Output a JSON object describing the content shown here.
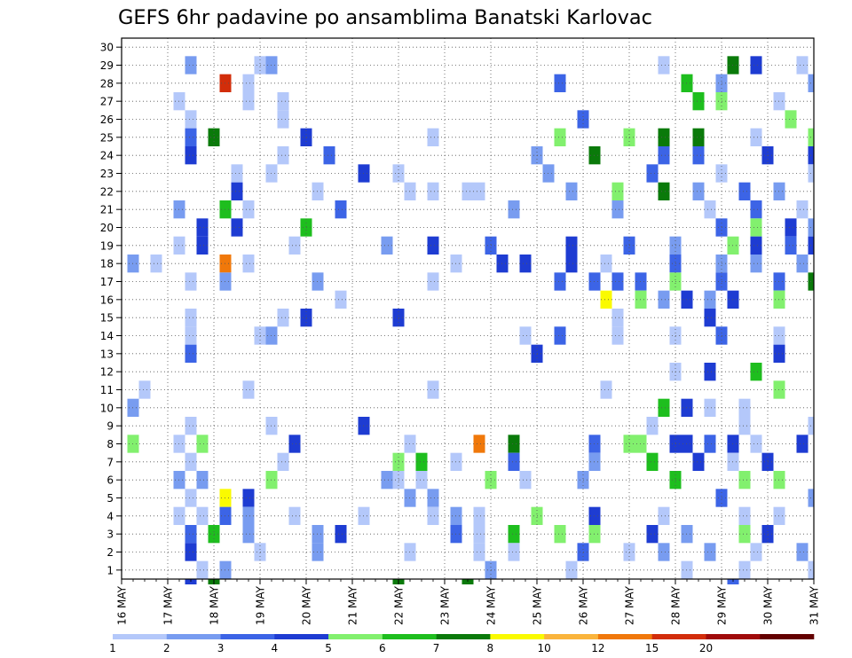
{
  "chart_data": {
    "type": "heatmap",
    "title": "GEFS 6hr padavine po ansamblima Banatski Karlovac",
    "xlabel": "",
    "ylabel": "",
    "x_tick_labels": [
      "16 MAY",
      "17 MAY",
      "18 MAY",
      "19 MAY",
      "20 MAY",
      "21 MAY",
      "22 MAY",
      "23 MAY",
      "24 MAY",
      "25 MAY",
      "26 MAY",
      "27 MAY",
      "28 MAY",
      "29 MAY",
      "30 MAY",
      "31 MAY"
    ],
    "y_tick_labels": [
      "1",
      "2",
      "3",
      "4",
      "5",
      "6",
      "7",
      "8",
      "9",
      "10",
      "11",
      "12",
      "13",
      "14",
      "15",
      "16",
      "17",
      "18",
      "19",
      "20",
      "21",
      "22",
      "23",
      "24",
      "25",
      "26",
      "27",
      "28",
      "29",
      "30"
    ],
    "x_range": [
      0,
      60
    ],
    "y_range": [
      0.5,
      30.5
    ],
    "time_steps_per_day": 4,
    "grid": true,
    "colorbar": {
      "placement": "bottom",
      "labels": [
        "1",
        "2",
        "3",
        "4",
        "5",
        "6",
        "7",
        "8",
        "10",
        "12",
        "15",
        "20"
      ],
      "colors": [
        "#b4c8fa",
        "#789cf0",
        "#3c64e6",
        "#1e3cd2",
        "#82f06e",
        "#1ebe1e",
        "#0a7a0a",
        "#fafa00",
        "#fab43c",
        "#f0780a",
        "#d22d0a",
        "#a00a0a",
        "#640000"
      ]
    },
    "levels": {
      "1": "#b4c8fa",
      "2": "#789cf0",
      "3": "#3c64e6",
      "4": "#1e3cd2",
      "5": "#82f06e",
      "6": "#1ebe1e",
      "7": "#0a7a0a",
      "8": "#fafa00",
      "9": "#fab43c",
      "a": "#f0780a",
      "b": "#d22d0a",
      "c": "#a00a0a",
      "d": "#640000"
    },
    "rows": [
      "..............................................................",
      "......2.....12.................................1.....7.4...1...",
      ".........b.1..........................3..........6..2.......2.",
      ".....1.....1..1...................................6.5....1...3",
      "......1.......1.........................3.................5..",
      "......3.7.......4..........1..........5.....5..7..7....1....5",
      "......4.......1...3.................2....7.....3..3.....4...4",
      "..........1..1.......4..1............2........3.....1.......1",
      "..........4......1.......1.1..11.......2...5...7..2...3..2..",
      ".....2...6.1.......3..............2........2.......1...3...1.",
      ".......4..4.....6...................................3..5..4.2",
      ".....1.4.......1.......2...4....3......4....3...2....5.4..3.4",
      ".2.1.....a.1.................1...4.4...4..1.....3...2..2...2",
      "......1..2.......2.........1..........3..3.3.3..5...3....3..7.",
      "...................1......................8..5.2.4.2.4...5...",
      "......1.......1.4.......4..................1.......4.........4",
      "......1.....12.....................1..3....1....1...3....1...4",
      "......3.............................4....................4...",
      "................................................1..4...6.....4",
      "..1........1...............1..............1..............5...1",
      ".2.............................................6.4.1..1......",
      "......1......1.......4........................1.......1.....1",
      ".5...1.5.......4.........1.....a..7......3..55..44.3.4.1...4",
      "......1.......1.........5.6..1....3......2....6...4..1..4....",
      ".....2.2.....5.........21.1.....5..1....2.......6.....5..5..",
      "......1..8.4.............2.2........................3.......2",
      ".....1.1.3.2...1.....1.....1.2.1....5....4.....1......1..1...3",
      "......3.6..2.....2.4.........3.1..6...5..5....4..2....5.4....3",
      "......4.....1....2.......1.....1..1.....3...1..2...2...1...2.",
      ".......1.2......................2......1.........1....1.....1"
    ],
    "bottom_partial_row": "......4.7...............7.....7......................3......."
  }
}
